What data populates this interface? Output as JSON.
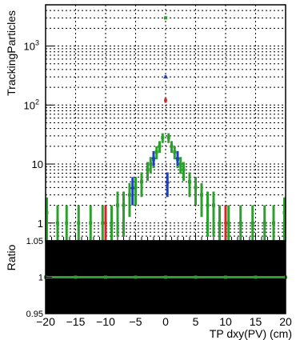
{
  "chart_data": {
    "type": "scatter",
    "xlabel": "TP dxy(PV) (cm)",
    "ylabel": "TrackingParticles",
    "xlim": [
      -20,
      20
    ],
    "ylim": [
      0.5,
      5000
    ],
    "yscale": "log",
    "grid": true,
    "xticks": [
      {
        "v": -20,
        "label": "−20"
      },
      {
        "v": -15,
        "label": "−15"
      },
      {
        "v": -10,
        "label": "−10"
      },
      {
        "v": -5,
        "label": "−5"
      },
      {
        "v": 0,
        "label": "0"
      },
      {
        "v": 5,
        "label": "5"
      },
      {
        "v": 10,
        "label": "10"
      },
      {
        "v": 15,
        "label": "15"
      },
      {
        "v": 20,
        "label": "20"
      }
    ],
    "yticks": [
      {
        "v": 1,
        "label": "1"
      },
      {
        "v": 10,
        "label": "10"
      },
      {
        "v": 100,
        "label": "10",
        "sup": "2"
      },
      {
        "v": 1000,
        "label": "10",
        "sup": "3"
      }
    ],
    "series": [
      {
        "color": "#2ca02c",
        "marker": "square",
        "x": [
          -19.8,
          -18.0,
          -16.5,
          -14.5,
          -12.5,
          -10.5,
          -9.0,
          -8.0,
          -7.0,
          -6.0,
          -5.0,
          -4.0,
          -3.0,
          -2.5,
          -2.0,
          -1.5,
          -1.0,
          -0.5,
          0.0,
          0.5,
          1.0,
          1.5,
          2.0,
          2.5,
          3.0,
          4.0,
          5.0,
          6.0,
          7.0,
          8.0,
          9.0,
          10.5,
          12.5,
          14.5,
          16.5,
          18.0,
          19.8
        ],
        "y": [
          1.5,
          1,
          1,
          1,
          1,
          1,
          1,
          2,
          2,
          3,
          4,
          5,
          8,
          10,
          12,
          16,
          20,
          28,
          3000,
          28,
          20,
          16,
          12,
          10,
          8,
          5,
          4,
          3,
          2,
          2,
          1,
          1,
          1,
          1,
          1,
          1,
          1.5
        ]
      },
      {
        "color": "#1f3fbf",
        "marker": "triangle",
        "x": [
          -5.5,
          -2.0,
          0.0,
          2.0,
          0.3
        ],
        "y": [
          4,
          13,
          300,
          13,
          5
        ]
      },
      {
        "color": "#d62728",
        "marker": "circle",
        "x": [
          -10.0,
          0.0,
          10.0
        ],
        "y": [
          1,
          120,
          1
        ]
      }
    ],
    "ratio": {
      "ylabel": "Ratio",
      "ylim": [
        0.95,
        1.05
      ],
      "yticks": [
        {
          "v": 0.95,
          "label": "0.95"
        },
        {
          "v": 1,
          "label": "1"
        },
        {
          "v": 1.05,
          "label": "1.05"
        }
      ],
      "values": [
        1,
        1,
        1,
        1,
        1,
        1,
        1,
        1,
        1
      ]
    }
  }
}
